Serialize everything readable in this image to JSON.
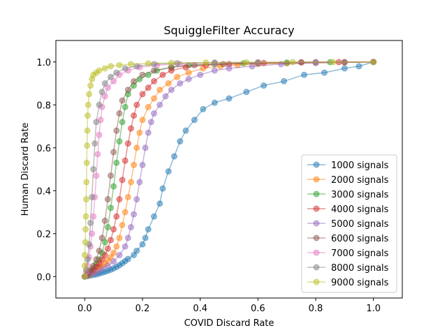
{
  "chart_data": {
    "type": "line",
    "title": "SquiggleFilter Accuracy",
    "xlabel": "COVID Discard Rate",
    "ylabel": "Human Discard Rate",
    "xlim": [
      -0.1,
      1.1
    ],
    "ylim": [
      -0.1,
      1.1
    ],
    "xticks": [
      "0.0",
      "0.2",
      "0.4",
      "0.6",
      "0.8",
      "1.0"
    ],
    "yticks": [
      "0.0",
      "0.2",
      "0.4",
      "0.6",
      "0.8",
      "1.0"
    ],
    "grid": false,
    "legend_position": "lower-right",
    "marker": "circle",
    "series": [
      {
        "name": "1000 signals",
        "color": "#1f77b4",
        "points": [
          [
            0.0,
            0.0
          ],
          [
            0.01,
            0.002
          ],
          [
            0.02,
            0.005
          ],
          [
            0.03,
            0.008
          ],
          [
            0.04,
            0.01
          ],
          [
            0.05,
            0.014
          ],
          [
            0.06,
            0.018
          ],
          [
            0.07,
            0.022
          ],
          [
            0.08,
            0.027
          ],
          [
            0.09,
            0.032
          ],
          [
            0.1,
            0.038
          ],
          [
            0.11,
            0.045
          ],
          [
            0.12,
            0.053
          ],
          [
            0.13,
            0.062
          ],
          [
            0.14,
            0.072
          ],
          [
            0.15,
            0.082
          ],
          [
            0.17,
            0.1
          ],
          [
            0.18,
            0.12
          ],
          [
            0.2,
            0.15
          ],
          [
            0.21,
            0.18
          ],
          [
            0.22,
            0.22
          ],
          [
            0.24,
            0.28
          ],
          [
            0.26,
            0.34
          ],
          [
            0.27,
            0.41
          ],
          [
            0.29,
            0.49
          ],
          [
            0.31,
            0.56
          ],
          [
            0.33,
            0.63
          ],
          [
            0.35,
            0.68
          ],
          [
            0.38,
            0.73
          ],
          [
            0.41,
            0.78
          ],
          [
            0.45,
            0.81
          ],
          [
            0.5,
            0.83
          ],
          [
            0.56,
            0.86
          ],
          [
            0.62,
            0.89
          ],
          [
            0.69,
            0.91
          ],
          [
            0.76,
            0.94
          ],
          [
            0.83,
            0.95
          ],
          [
            0.9,
            0.97
          ],
          [
            0.95,
            0.98
          ],
          [
            1.0,
            1.0
          ]
        ]
      },
      {
        "name": "2000 signals",
        "color": "#ff7f0e",
        "points": [
          [
            0.0,
            0.0
          ],
          [
            0.01,
            0.005
          ],
          [
            0.02,
            0.012
          ],
          [
            0.03,
            0.02
          ],
          [
            0.04,
            0.03
          ],
          [
            0.05,
            0.04
          ],
          [
            0.06,
            0.05
          ],
          [
            0.07,
            0.06
          ],
          [
            0.08,
            0.075
          ],
          [
            0.09,
            0.09
          ],
          [
            0.1,
            0.11
          ],
          [
            0.11,
            0.14
          ],
          [
            0.12,
            0.18
          ],
          [
            0.13,
            0.24
          ],
          [
            0.14,
            0.3
          ],
          [
            0.15,
            0.37
          ],
          [
            0.16,
            0.44
          ],
          [
            0.17,
            0.52
          ],
          [
            0.18,
            0.6
          ],
          [
            0.19,
            0.67
          ],
          [
            0.2,
            0.73
          ],
          [
            0.22,
            0.79
          ],
          [
            0.24,
            0.83
          ],
          [
            0.26,
            0.87
          ],
          [
            0.29,
            0.9
          ],
          [
            0.32,
            0.93
          ],
          [
            0.36,
            0.95
          ],
          [
            0.41,
            0.97
          ],
          [
            0.47,
            0.98
          ],
          [
            0.53,
            0.985
          ],
          [
            0.6,
            0.99
          ],
          [
            0.7,
            0.993
          ],
          [
            0.8,
            0.996
          ],
          [
            0.9,
            0.998
          ],
          [
            1.0,
            1.0
          ]
        ]
      },
      {
        "name": "3000 signals",
        "color": "#2ca02c",
        "points": [
          [
            0.0,
            0.0
          ],
          [
            0.01,
            0.01
          ],
          [
            0.02,
            0.025
          ],
          [
            0.03,
            0.04
          ],
          [
            0.04,
            0.06
          ],
          [
            0.05,
            0.08
          ],
          [
            0.06,
            0.11
          ],
          [
            0.07,
            0.16
          ],
          [
            0.08,
            0.23
          ],
          [
            0.09,
            0.32
          ],
          [
            0.1,
            0.42
          ],
          [
            0.11,
            0.53
          ],
          [
            0.12,
            0.63
          ],
          [
            0.13,
            0.72
          ],
          [
            0.14,
            0.79
          ],
          [
            0.15,
            0.85
          ],
          [
            0.17,
            0.89
          ],
          [
            0.19,
            0.92
          ],
          [
            0.22,
            0.94
          ],
          [
            0.25,
            0.96
          ],
          [
            0.3,
            0.975
          ],
          [
            0.36,
            0.985
          ],
          [
            0.45,
            0.99
          ],
          [
            0.55,
            0.994
          ],
          [
            0.7,
            0.997
          ],
          [
            0.85,
            0.999
          ],
          [
            1.0,
            1.0
          ]
        ]
      },
      {
        "name": "4000 signals",
        "color": "#d62728",
        "points": [
          [
            0.0,
            0.0
          ],
          [
            0.01,
            0.008
          ],
          [
            0.02,
            0.02
          ],
          [
            0.03,
            0.03
          ],
          [
            0.04,
            0.045
          ],
          [
            0.05,
            0.06
          ],
          [
            0.06,
            0.08
          ],
          [
            0.07,
            0.1
          ],
          [
            0.08,
            0.13
          ],
          [
            0.09,
            0.17
          ],
          [
            0.1,
            0.22
          ],
          [
            0.11,
            0.28
          ],
          [
            0.12,
            0.36
          ],
          [
            0.13,
            0.45
          ],
          [
            0.14,
            0.54
          ],
          [
            0.15,
            0.62
          ],
          [
            0.16,
            0.69
          ],
          [
            0.17,
            0.75
          ],
          [
            0.18,
            0.8
          ],
          [
            0.2,
            0.85
          ],
          [
            0.22,
            0.88
          ],
          [
            0.24,
            0.91
          ],
          [
            0.27,
            0.94
          ],
          [
            0.3,
            0.96
          ],
          [
            0.35,
            0.975
          ],
          [
            0.42,
            0.985
          ],
          [
            0.5,
            0.99
          ],
          [
            0.62,
            0.995
          ],
          [
            0.75,
            0.998
          ],
          [
            0.88,
            0.999
          ],
          [
            1.0,
            1.0
          ]
        ]
      },
      {
        "name": "5000 signals",
        "color": "#9467bd",
        "points": [
          [
            0.0,
            0.0
          ],
          [
            0.02,
            0.01
          ],
          [
            0.04,
            0.02
          ],
          [
            0.06,
            0.035
          ],
          [
            0.08,
            0.05
          ],
          [
            0.1,
            0.07
          ],
          [
            0.12,
            0.1
          ],
          [
            0.14,
            0.14
          ],
          [
            0.15,
            0.18
          ],
          [
            0.16,
            0.23
          ],
          [
            0.17,
            0.29
          ],
          [
            0.18,
            0.36
          ],
          [
            0.19,
            0.44
          ],
          [
            0.2,
            0.52
          ],
          [
            0.21,
            0.6
          ],
          [
            0.22,
            0.67
          ],
          [
            0.23,
            0.72
          ],
          [
            0.24,
            0.76
          ],
          [
            0.26,
            0.8
          ],
          [
            0.28,
            0.84
          ],
          [
            0.3,
            0.87
          ],
          [
            0.33,
            0.9
          ],
          [
            0.36,
            0.92
          ],
          [
            0.4,
            0.94
          ],
          [
            0.45,
            0.96
          ],
          [
            0.5,
            0.97
          ],
          [
            0.58,
            0.98
          ],
          [
            0.68,
            0.99
          ],
          [
            0.8,
            0.995
          ],
          [
            0.9,
            0.998
          ],
          [
            1.0,
            1.0
          ]
        ]
      },
      {
        "name": "6000 signals",
        "color": "#8c564b",
        "points": [
          [
            0.0,
            0.0
          ],
          [
            0.01,
            0.015
          ],
          [
            0.02,
            0.03
          ],
          [
            0.03,
            0.05
          ],
          [
            0.04,
            0.08
          ],
          [
            0.05,
            0.12
          ],
          [
            0.06,
            0.18
          ],
          [
            0.07,
            0.26
          ],
          [
            0.08,
            0.36
          ],
          [
            0.09,
            0.47
          ],
          [
            0.1,
            0.58
          ],
          [
            0.11,
            0.68
          ],
          [
            0.12,
            0.76
          ],
          [
            0.13,
            0.82
          ],
          [
            0.15,
            0.87
          ],
          [
            0.17,
            0.91
          ],
          [
            0.2,
            0.94
          ],
          [
            0.24,
            0.96
          ],
          [
            0.3,
            0.975
          ],
          [
            0.38,
            0.985
          ],
          [
            0.48,
            0.99
          ],
          [
            0.6,
            0.995
          ],
          [
            0.75,
            0.998
          ],
          [
            0.9,
            0.999
          ],
          [
            1.0,
            1.0
          ]
        ]
      },
      {
        "name": "7000 signals",
        "color": "#e377c2",
        "points": [
          [
            0.0,
            0.0
          ],
          [
            0.005,
            0.02
          ],
          [
            0.01,
            0.05
          ],
          [
            0.015,
            0.09
          ],
          [
            0.02,
            0.14
          ],
          [
            0.025,
            0.2
          ],
          [
            0.03,
            0.28
          ],
          [
            0.035,
            0.37
          ],
          [
            0.04,
            0.47
          ],
          [
            0.045,
            0.57
          ],
          [
            0.05,
            0.66
          ],
          [
            0.055,
            0.73
          ],
          [
            0.06,
            0.79
          ],
          [
            0.07,
            0.84
          ],
          [
            0.08,
            0.88
          ],
          [
            0.1,
            0.91
          ],
          [
            0.12,
            0.94
          ],
          [
            0.15,
            0.96
          ],
          [
            0.19,
            0.975
          ],
          [
            0.25,
            0.985
          ],
          [
            0.33,
            0.99
          ],
          [
            0.45,
            0.995
          ],
          [
            0.6,
            0.998
          ],
          [
            0.8,
            0.999
          ],
          [
            1.0,
            1.0
          ]
        ]
      },
      {
        "name": "8000 signals",
        "color": "#7f7f7f",
        "points": [
          [
            0.0,
            0.0
          ],
          [
            0.005,
            0.03
          ],
          [
            0.01,
            0.08
          ],
          [
            0.015,
            0.15
          ],
          [
            0.02,
            0.25
          ],
          [
            0.025,
            0.37
          ],
          [
            0.03,
            0.5
          ],
          [
            0.035,
            0.62
          ],
          [
            0.04,
            0.72
          ],
          [
            0.05,
            0.8
          ],
          [
            0.06,
            0.86
          ],
          [
            0.07,
            0.9
          ],
          [
            0.09,
            0.93
          ],
          [
            0.11,
            0.95
          ],
          [
            0.14,
            0.97
          ],
          [
            0.18,
            0.98
          ],
          [
            0.24,
            0.99
          ],
          [
            0.32,
            0.994
          ],
          [
            0.45,
            0.997
          ],
          [
            0.6,
            0.998
          ],
          [
            0.8,
            0.999
          ],
          [
            1.0,
            1.0
          ]
        ]
      },
      {
        "name": "9000 signals",
        "color": "#bcbd22",
        "points": [
          [
            0.0,
            0.0
          ],
          [
            0.0,
            0.05
          ],
          [
            0.0,
            0.1
          ],
          [
            0.002,
            0.16
          ],
          [
            0.003,
            0.22
          ],
          [
            0.004,
            0.28
          ],
          [
            0.005,
            0.36
          ],
          [
            0.006,
            0.44
          ],
          [
            0.007,
            0.53
          ],
          [
            0.008,
            0.61
          ],
          [
            0.009,
            0.68
          ],
          [
            0.01,
            0.75
          ],
          [
            0.012,
            0.8
          ],
          [
            0.015,
            0.85
          ],
          [
            0.02,
            0.89
          ],
          [
            0.025,
            0.92
          ],
          [
            0.03,
            0.94
          ],
          [
            0.04,
            0.95
          ],
          [
            0.05,
            0.96
          ],
          [
            0.07,
            0.97
          ],
          [
            0.09,
            0.98
          ],
          [
            0.12,
            0.985
          ],
          [
            0.16,
            0.99
          ],
          [
            0.22,
            0.993
          ],
          [
            0.3,
            0.995
          ],
          [
            0.42,
            0.997
          ],
          [
            0.56,
            0.998
          ],
          [
            0.72,
            0.999
          ],
          [
            0.86,
            0.999
          ],
          [
            1.0,
            1.0
          ]
        ]
      }
    ]
  }
}
